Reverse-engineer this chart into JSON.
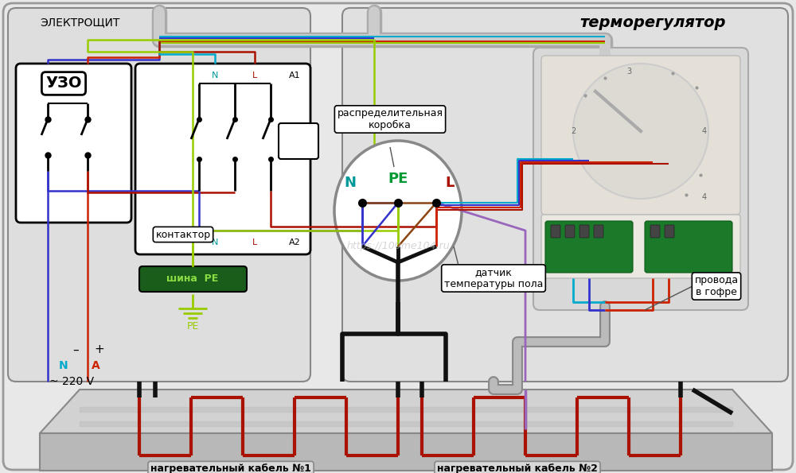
{
  "bg_color": "#f5f5f5",
  "elektroshit_label": "ЭЛЕКТРОЩИТ",
  "termoreg_label": "терморегулятор",
  "uzo_label": "УЗО",
  "kontaktor_label": "контактор",
  "shina_label": "шина  PE",
  "raspredelitelnaya_label": "распределительная\nкоробка",
  "datchik_label": "датчик\nтемпературы пола",
  "provoda_label": "провода\nв гофре",
  "kabel1_label": "нагревательный кабель №1",
  "kabel2_label": "нагревательный кабель №2",
  "watermark": "https://100me104.ru",
  "colors": {
    "blue": "#3333cc",
    "red": "#cc2200",
    "dark_red": "#aa1100",
    "brown": "#8B4513",
    "yellow_green": "#99cc00",
    "cyan": "#00aacc",
    "gray": "#888888",
    "dark_gray": "#555555",
    "black": "#111111",
    "green": "#009933",
    "teal": "#009999",
    "light_gray": "#cccccc",
    "panel_bg": "#dcdcdc",
    "panel_bg2": "#e8e8e8",
    "floor_top": "#d0d0d0",
    "floor_side": "#b8b8b8",
    "floor_bottom_strip": "#c4c4c4",
    "purple": "#9966bb",
    "white": "#ffffff",
    "outer_bg": "#e8e8e8"
  }
}
